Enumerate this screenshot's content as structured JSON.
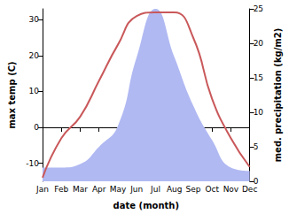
{
  "chart_data": {
    "type": "line",
    "categories": [
      "Jan",
      "Feb",
      "Mar",
      "Apr",
      "May",
      "Jun",
      "Jul",
      "Aug",
      "Sep",
      "Oct",
      "Nov",
      "Dec"
    ],
    "x_label": "date (month)",
    "y_label": "max temp (C)",
    "y2_label": "med. precipitation (kg/m2)",
    "ylim": [
      -15,
      33
    ],
    "yticks": [
      -10,
      0,
      10,
      20,
      30
    ],
    "y2lim": [
      0,
      25
    ],
    "y2ticks": [
      0,
      5,
      10,
      15,
      20,
      25
    ],
    "grid": false,
    "series": [
      {
        "name": "max temp",
        "type": "line",
        "color": "#c9585a",
        "values": [
          -14,
          -3,
          3,
          13,
          23,
          31,
          32,
          32,
          25,
          8,
          -3,
          -11
        ]
      },
      {
        "name": "med. precipitation",
        "type": "area",
        "axis": "y2",
        "color": "#b0b9f2",
        "values": [
          2,
          2,
          2.5,
          5,
          8,
          18,
          25,
          18,
          11,
          6,
          2,
          1.5
        ]
      }
    ]
  }
}
